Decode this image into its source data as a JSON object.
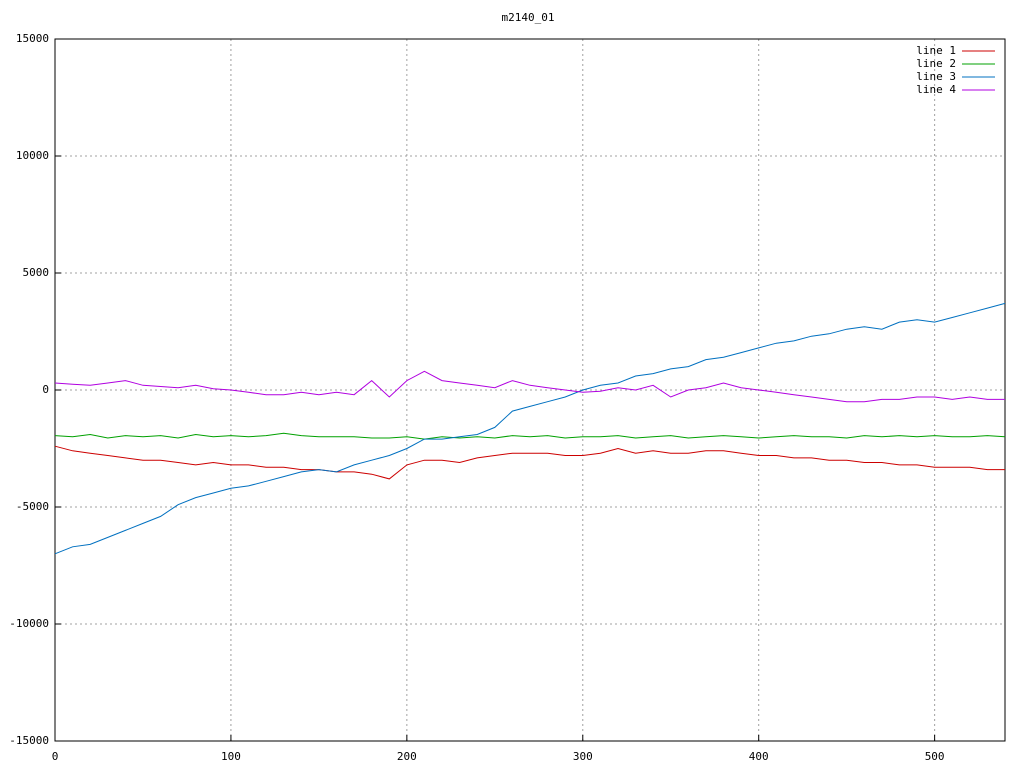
{
  "chart_data": {
    "type": "line",
    "title": "m2140_01",
    "x": [
      0,
      10,
      20,
      30,
      40,
      50,
      60,
      70,
      80,
      90,
      100,
      110,
      120,
      130,
      140,
      150,
      160,
      170,
      180,
      190,
      200,
      210,
      220,
      230,
      240,
      250,
      260,
      270,
      280,
      290,
      300,
      310,
      320,
      330,
      340,
      350,
      360,
      370,
      380,
      390,
      400,
      410,
      420,
      430,
      440,
      450,
      460,
      470,
      480,
      490,
      500,
      510,
      520,
      530,
      540
    ],
    "series": [
      {
        "name": "line 1",
        "color": "#cc0000",
        "values": [
          -2400,
          -2600,
          -2700,
          -2800,
          -2900,
          -3000,
          -3000,
          -3100,
          -3200,
          -3100,
          -3200,
          -3200,
          -3300,
          -3300,
          -3400,
          -3400,
          -3500,
          -3500,
          -3600,
          -3800,
          -3200,
          -3000,
          -3000,
          -3100,
          -2900,
          -2800,
          -2700,
          -2700,
          -2700,
          -2800,
          -2800,
          -2700,
          -2500,
          -2700,
          -2600,
          -2700,
          -2700,
          -2600,
          -2600,
          -2700,
          -2800,
          -2800,
          -2900,
          -2900,
          -3000,
          -3000,
          -3100,
          -3100,
          -3200,
          -3200,
          -3300,
          -3300,
          -3300,
          -3400,
          -3400
        ]
      },
      {
        "name": "line 2",
        "color": "#00a000",
        "values": [
          -1950,
          -2000,
          -1900,
          -2050,
          -1950,
          -2000,
          -1950,
          -2050,
          -1900,
          -2000,
          -1950,
          -2000,
          -1950,
          -1850,
          -1950,
          -2000,
          -2000,
          -2000,
          -2050,
          -2050,
          -2000,
          -2100,
          -2000,
          -2050,
          -2000,
          -2050,
          -1950,
          -2000,
          -1950,
          -2050,
          -2000,
          -2000,
          -1950,
          -2050,
          -2000,
          -1950,
          -2050,
          -2000,
          -1950,
          -2000,
          -2050,
          -2000,
          -1950,
          -2000,
          -2000,
          -2050,
          -1950,
          -2000,
          -1950,
          -2000,
          -1950,
          -2000,
          -2000,
          -1950,
          -2000
        ]
      },
      {
        "name": "line 3",
        "color": "#0070c0",
        "values": [
          -7000,
          -6700,
          -6600,
          -6300,
          -6000,
          -5700,
          -5400,
          -4900,
          -4600,
          -4400,
          -4200,
          -4100,
          -3900,
          -3700,
          -3500,
          -3400,
          -3500,
          -3200,
          -3000,
          -2800,
          -2500,
          -2100,
          -2100,
          -2000,
          -1900,
          -1600,
          -900,
          -700,
          -500,
          -300,
          0,
          200,
          300,
          600,
          700,
          900,
          1000,
          1300,
          1400,
          1600,
          1800,
          2000,
          2100,
          2300,
          2400,
          2600,
          2700,
          2600,
          2900,
          3000,
          2900,
          3100,
          3300,
          3500,
          3700
        ]
      },
      {
        "name": "line 4",
        "color": "#b000e0",
        "values": [
          300,
          250,
          200,
          300,
          400,
          200,
          150,
          100,
          200,
          50,
          0,
          -100,
          -200,
          -200,
          -100,
          -200,
          -100,
          -200,
          400,
          -300,
          400,
          800,
          400,
          300,
          200,
          100,
          400,
          200,
          100,
          0,
          -100,
          -50,
          100,
          0,
          200,
          -300,
          0,
          100,
          300,
          100,
          0,
          -100,
          -200,
          -300,
          -400,
          -500,
          -500,
          -400,
          -400,
          -300,
          -300,
          -400,
          -300,
          -400,
          -400
        ]
      }
    ],
    "xlim": [
      0,
      540
    ],
    "xticks": [
      0,
      100,
      200,
      300,
      400,
      500
    ],
    "ylim": [
      -15000,
      15000
    ],
    "yticks": [
      -15000,
      -10000,
      -5000,
      0,
      5000,
      10000,
      15000
    ],
    "grid": true,
    "legend": "top-right"
  }
}
